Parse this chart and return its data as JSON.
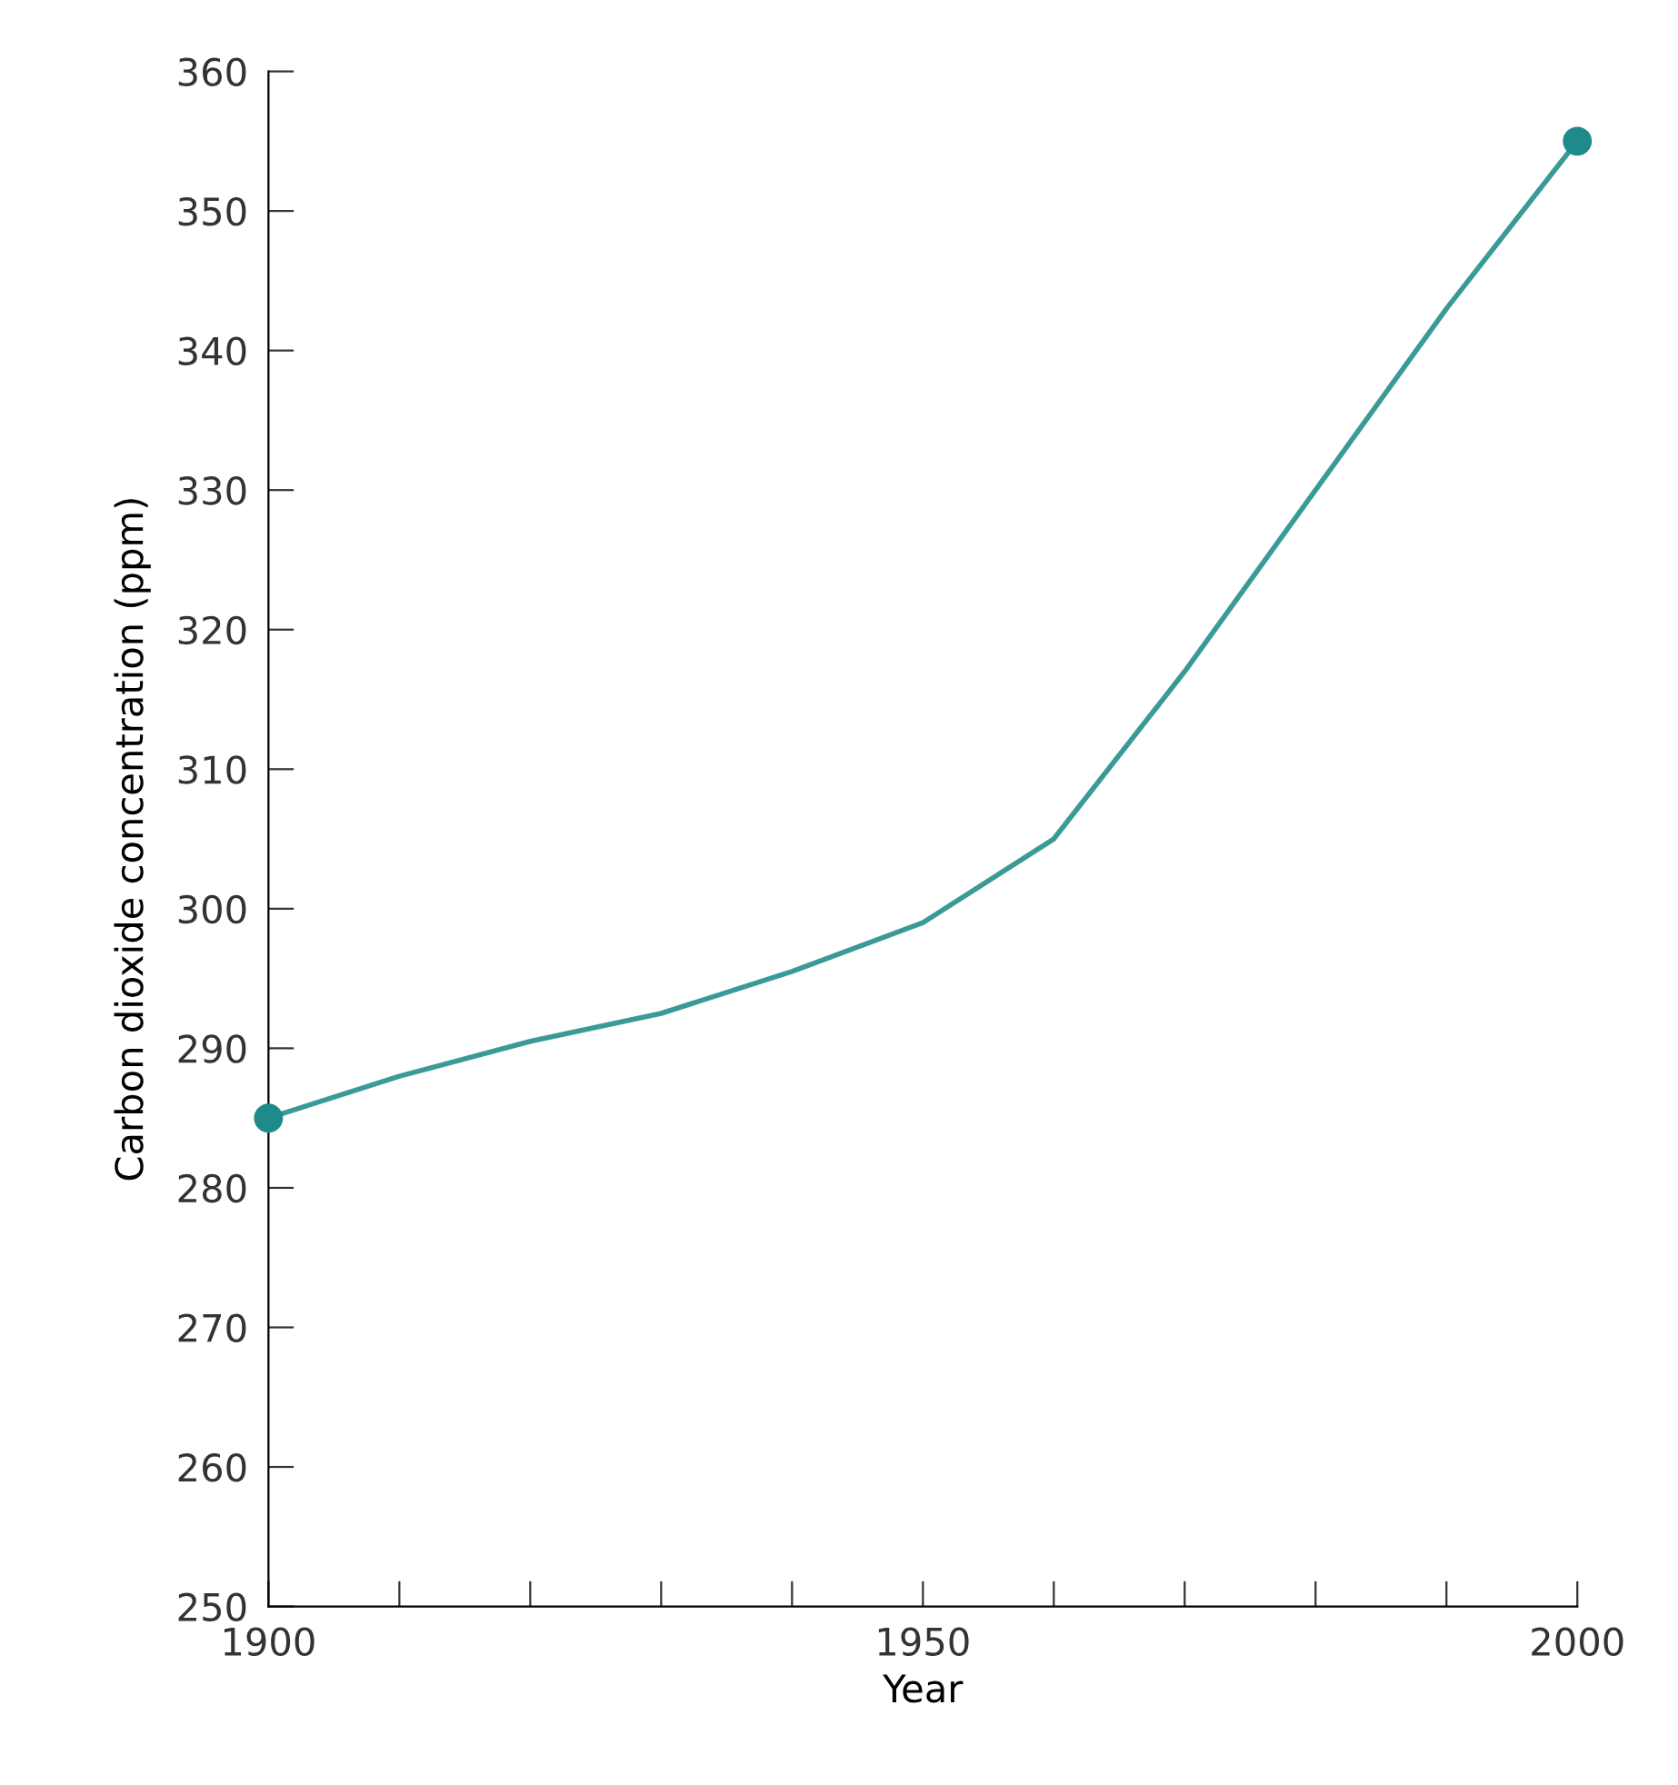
{
  "chart_data": {
    "type": "line",
    "xlabel": "Year",
    "ylabel": "Carbon dioxide concentration (ppm)",
    "x": [
      1900,
      1910,
      1920,
      1930,
      1940,
      1950,
      1960,
      1970,
      1980,
      1990,
      2000
    ],
    "series": [
      {
        "color": "#3a9a98",
        "values": [
          285,
          288,
          290.5,
          292.5,
          295.5,
          299,
          305,
          317,
          330,
          343,
          355
        ],
        "marker": "none"
      },
      {
        "type": "scatter",
        "color": "#1f8a8a",
        "x": [
          1900,
          2000
        ],
        "values": [
          285,
          355
        ],
        "marker": "circle"
      }
    ],
    "xlim": [
      1900,
      2000
    ],
    "ylim": [
      250,
      360
    ],
    "xticks": [
      1900,
      {
        "value": 1910,
        "label": null
      },
      {
        "value": 1920,
        "label": null
      },
      {
        "value": 1930,
        "label": null
      },
      {
        "value": 1940,
        "label": null
      },
      1950,
      {
        "value": 1960,
        "label": null
      },
      {
        "value": 1970,
        "label": null
      },
      {
        "value": 1980,
        "label": null
      },
      {
        "value": 1990,
        "label": null
      },
      2000
    ],
    "yticks": [
      250,
      260,
      270,
      280,
      290,
      300,
      310,
      320,
      330,
      340,
      350,
      360
    ],
    "grid": false,
    "line_style": "solid"
  }
}
